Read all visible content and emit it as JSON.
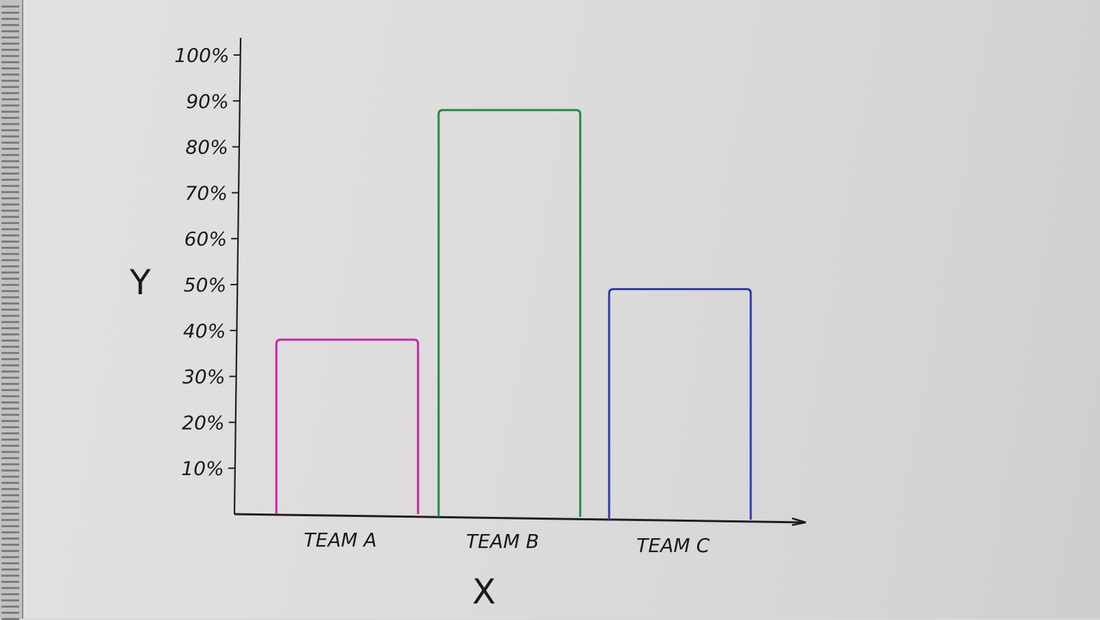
{
  "chart_data": {
    "type": "bar",
    "categories": [
      "TEAM A",
      "TEAM B",
      "TEAM C"
    ],
    "values": [
      38,
      88,
      49
    ],
    "colors": [
      "#d61ea8",
      "#1f8a3c",
      "#2f36b8"
    ],
    "xlabel": "X",
    "ylabel": "Y",
    "yticks": [
      "10%",
      "20%",
      "30%",
      "40%",
      "50%",
      "60%",
      "70%",
      "80%",
      "90%",
      "100%"
    ],
    "ylim": [
      0,
      100
    ],
    "grid": false,
    "legend": "none"
  }
}
